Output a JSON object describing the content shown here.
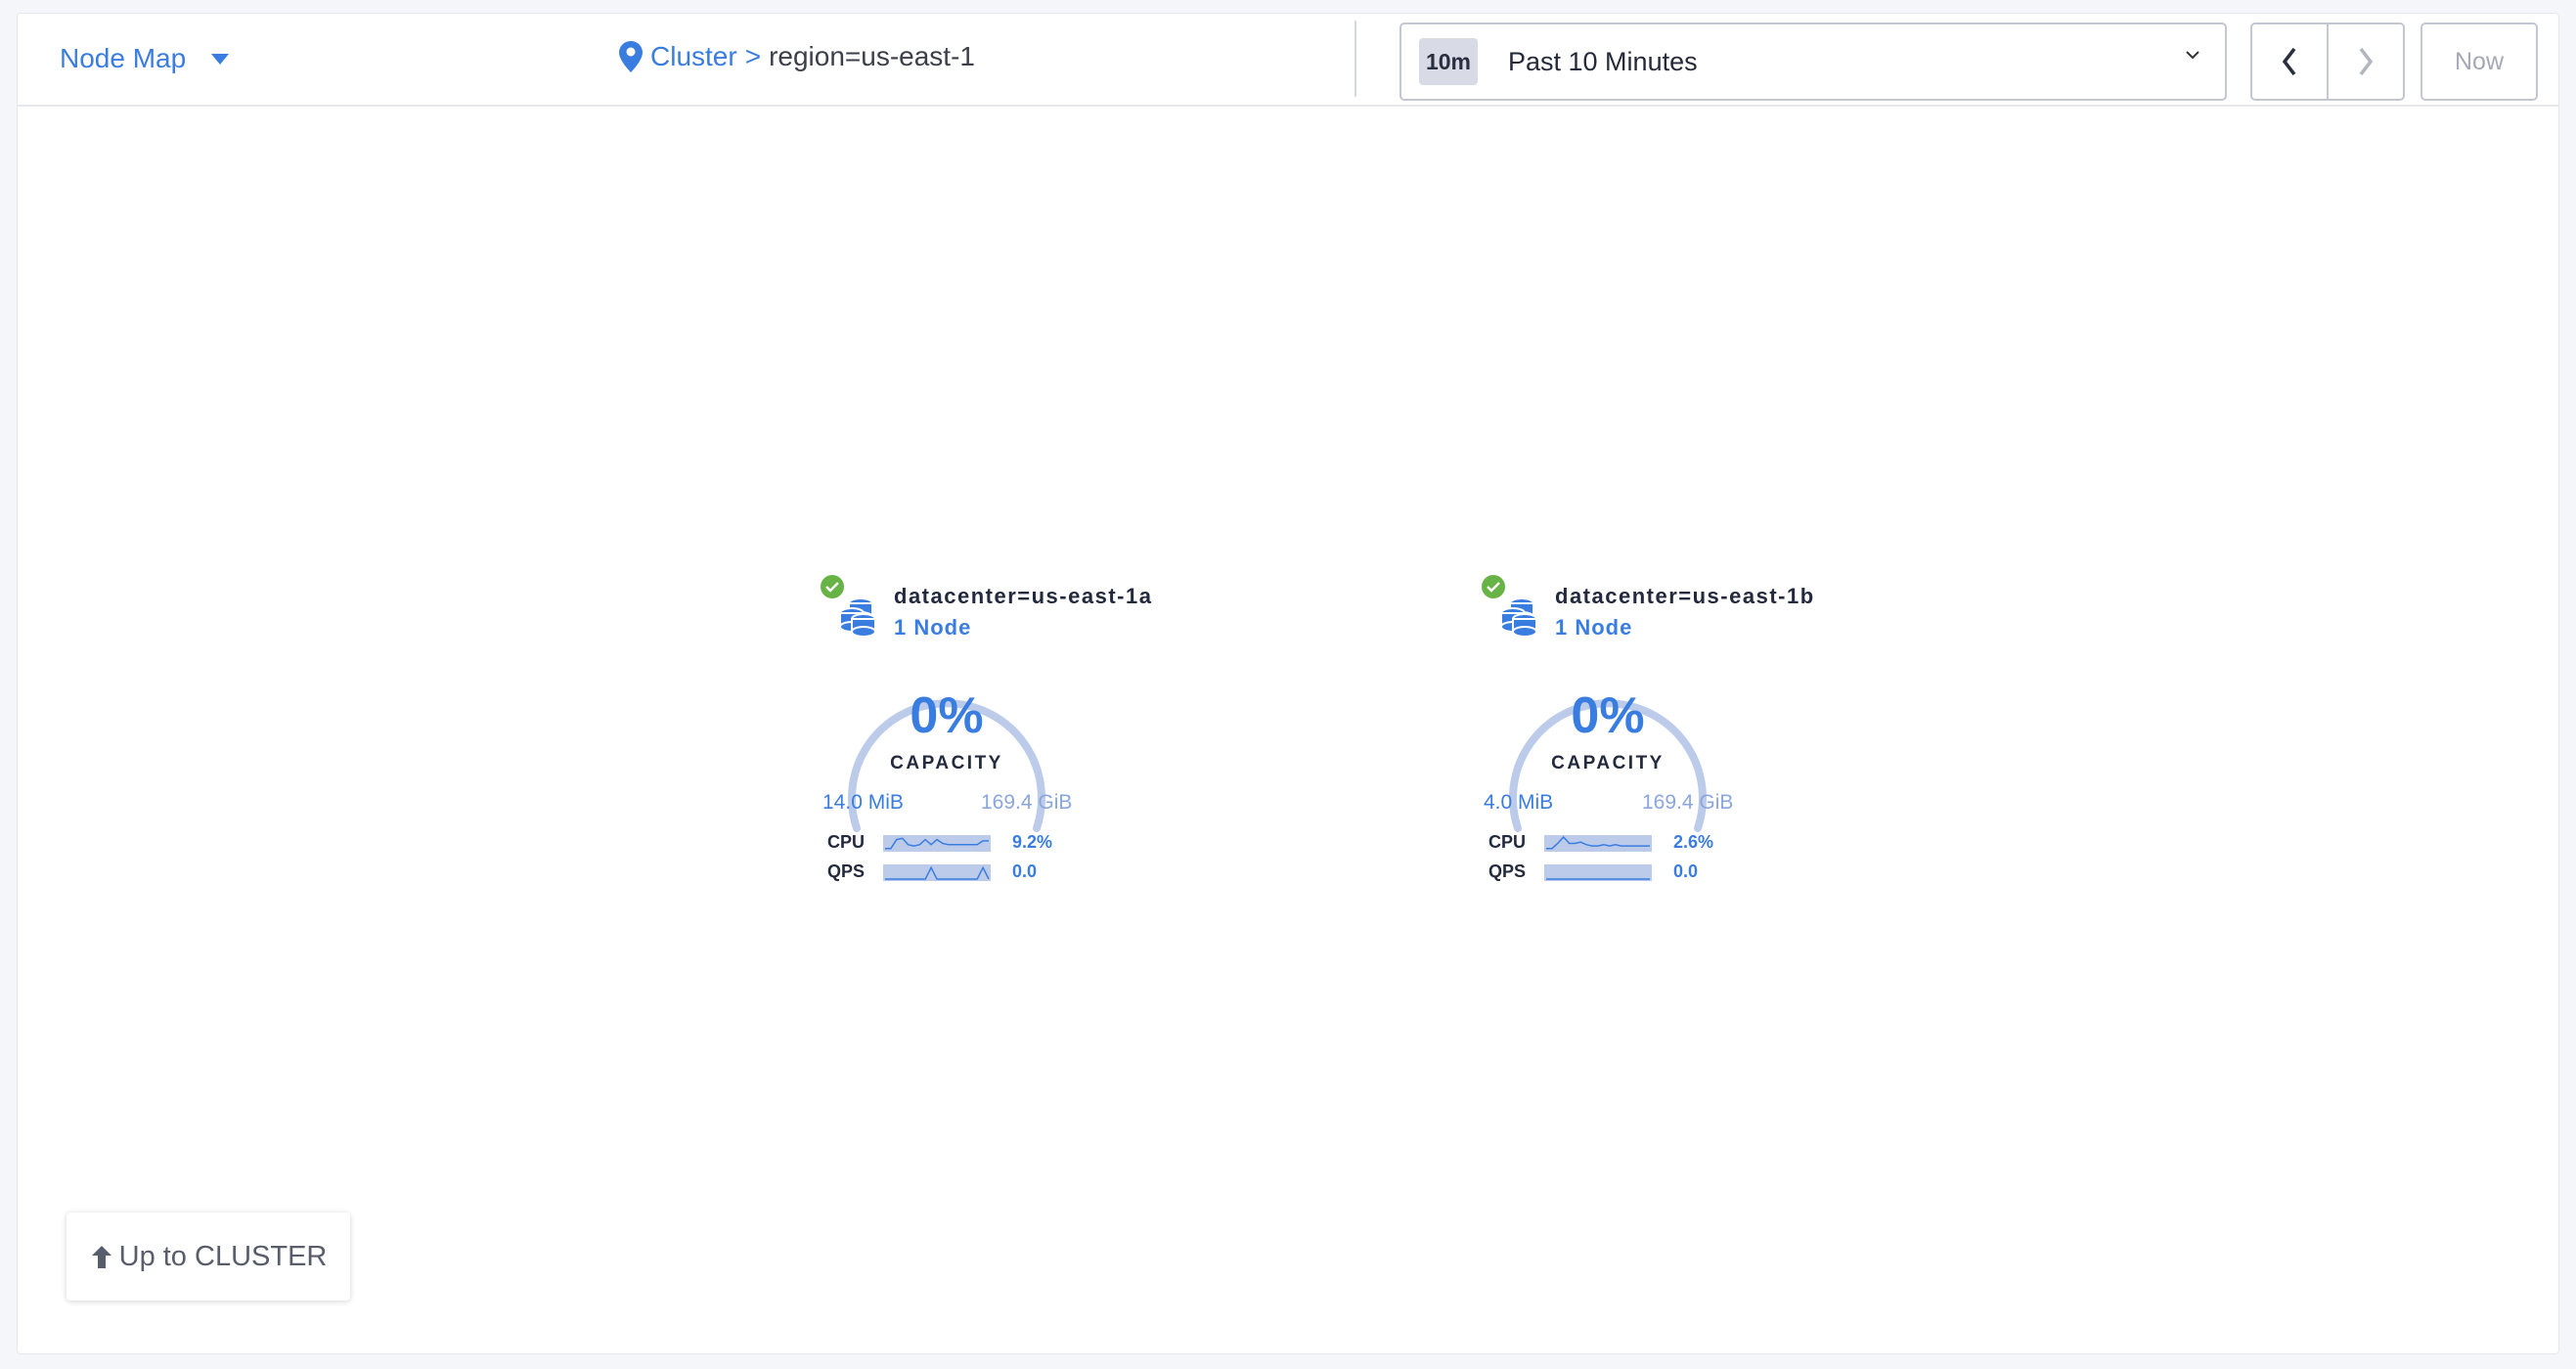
{
  "header": {
    "view_selector": "Node Map",
    "breadcrumb": {
      "root": "Cluster",
      "separator": ">",
      "current": "region=us-east-1"
    },
    "time_range": {
      "badge": "10m",
      "label": "Past 10 Minutes"
    },
    "now_label": "Now"
  },
  "colors": {
    "accent": "#3a7de1",
    "healthy": "#67b345",
    "gauge_track": "#bccbea"
  },
  "localities": [
    {
      "name": "datacenter=us-east-1a",
      "nodes": "1 Node",
      "status": "healthy",
      "capacity_pct": "0%",
      "capacity_label": "CAPACITY",
      "used": "14.0 MiB",
      "total": "169.4 GiB",
      "cpu": {
        "label": "CPU",
        "value": "9.2%",
        "spark": [
          1,
          1,
          8,
          9,
          4,
          3,
          4,
          8,
          4,
          8,
          5,
          4,
          4,
          4,
          4,
          4,
          4,
          7,
          7
        ]
      },
      "qps": {
        "label": "QPS",
        "value": "0.0",
        "spark": [
          0,
          0,
          0,
          0,
          0,
          0,
          0,
          0,
          9,
          0,
          0,
          0,
          0,
          0,
          0,
          0,
          0,
          9,
          0
        ]
      }
    },
    {
      "name": "datacenter=us-east-1b",
      "nodes": "1 Node",
      "status": "healthy",
      "capacity_pct": "0%",
      "capacity_label": "CAPACITY",
      "used": "4.0 MiB",
      "total": "169.4 GiB",
      "cpu": {
        "label": "CPU",
        "value": "2.6%",
        "spark": [
          1,
          1,
          5,
          10,
          5,
          5,
          6,
          4,
          3,
          3,
          4,
          3,
          4,
          3,
          3,
          3,
          3,
          3,
          3
        ]
      },
      "qps": {
        "label": "QPS",
        "value": "0.0",
        "spark": [
          0,
          0,
          0,
          0,
          0,
          0,
          0,
          0,
          0,
          0,
          0,
          0,
          0,
          0,
          0,
          0,
          0,
          0,
          0
        ]
      }
    }
  ],
  "footer": {
    "up_label": "Up to CLUSTER"
  }
}
